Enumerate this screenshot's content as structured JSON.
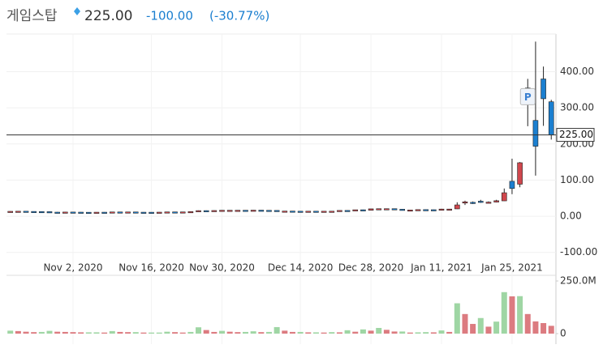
{
  "header": {
    "name": "게임스탑",
    "change": "-100.00",
    "change_pct": "(-30.77%)"
  },
  "chart_data": {
    "type": "candlestick",
    "categories": [
      null,
      null,
      null,
      null,
      null,
      null,
      null,
      null,
      "Nov 2, 2020",
      null,
      null,
      null,
      null,
      null,
      null,
      null,
      null,
      null,
      "Nov 16, 2020",
      null,
      null,
      null,
      null,
      null,
      null,
      null,
      null,
      "Nov 30, 2020",
      null,
      null,
      null,
      null,
      null,
      null,
      null,
      null,
      null,
      "Dec 14, 2020",
      null,
      null,
      null,
      null,
      null,
      null,
      null,
      null,
      "Dec 28, 2020",
      null,
      null,
      null,
      null,
      null,
      null,
      null,
      null,
      "Jan 11, 2021",
      null,
      null,
      null,
      null,
      null,
      null,
      null,
      null,
      "Jan 25, 2021",
      null,
      null,
      null,
      null,
      null
    ],
    "open": [
      13.2,
      13.6,
      13.9,
      13.3,
      13.0,
      12.7,
      11.3,
      11.2,
      11.6,
      11.3,
      11.0,
      10.9,
      11.2,
      11.0,
      11.9,
      11.4,
      11.9,
      11.2,
      11.1,
      11.0,
      11.3,
      12.0,
      11.9,
      12.0,
      12.9,
      15.6,
      15.3,
      15.9,
      16.6,
      16.6,
      16.6,
      16.1,
      16.9,
      16.4,
      16.1,
      13.7,
      14.3,
      13.9,
      13.8,
      14.0,
      13.6,
      13.9,
      14.0,
      16.1,
      15.7,
      17.9,
      16.6,
      20.5,
      20.9,
      20.9,
      19.4,
      17.3,
      17.4,
      18.4,
      18.1,
      19.5,
      19.9,
      20.4,
      38.5,
      38.5,
      41.6,
      37.4,
      39.2,
      42.6,
      96.7,
      88.6,
      354.8,
      265.0,
      379.7,
      316.6
    ],
    "high": [
      14.0,
      14.3,
      14.2,
      13.6,
      13.3,
      12.9,
      11.8,
      11.9,
      11.9,
      11.6,
      11.3,
      11.4,
      11.5,
      12.2,
      12.1,
      12.2,
      12.0,
      11.5,
      11.4,
      11.6,
      12.3,
      12.3,
      12.3,
      13.2,
      16.1,
      16.0,
      16.3,
      17.0,
      16.9,
      17.0,
      16.9,
      17.2,
      17.2,
      16.8,
      16.4,
      14.5,
      14.6,
      14.3,
      14.2,
      14.3,
      14.1,
      14.3,
      14.4,
      16.5,
      16.3,
      18.3,
      18.0,
      21.0,
      21.5,
      21.3,
      19.6,
      18.1,
      18.9,
      18.9,
      18.4,
      20.5,
      20.4,
      38.7,
      43.1,
      40.8,
      45.5,
      41.1,
      45.5,
      76.8,
      159.2,
      150.0,
      380.0,
      483.0,
      414.0,
      322.0
    ],
    "low": [
      13.0,
      13.3,
      13.1,
      12.8,
      12.5,
      11.1,
      11.0,
      11.0,
      11.1,
      10.8,
      10.7,
      10.7,
      10.8,
      10.9,
      11.2,
      11.3,
      11.1,
      10.9,
      10.8,
      10.8,
      11.1,
      11.7,
      11.7,
      11.8,
      12.8,
      14.9,
      15.0,
      15.6,
      16.2,
      16.1,
      15.9,
      16.0,
      16.2,
      15.9,
      13.5,
      13.5,
      13.8,
      13.6,
      13.5,
      13.7,
      13.4,
      13.5,
      13.7,
      13.9,
      15.4,
      15.6,
      16.4,
      18.5,
      20.2,
      20.2,
      18.5,
      17.1,
      17.2,
      17.9,
      17.6,
      19.0,
      19.4,
      20.0,
      31.2,
      34.0,
      37.1,
      36.7,
      38.2,
      42.3,
      61.1,
      80.2,
      249.0,
      112.3,
      250.0,
      212.0
    ],
    "close": [
      13.6,
      13.9,
      13.3,
      13.0,
      12.7,
      11.3,
      11.2,
      11.6,
      11.3,
      11.0,
      10.9,
      11.2,
      11.0,
      11.9,
      11.4,
      11.9,
      11.2,
      11.1,
      11.0,
      11.3,
      12.0,
      11.9,
      12.0,
      12.9,
      15.6,
      15.3,
      15.9,
      16.6,
      16.6,
      16.6,
      16.1,
      16.9,
      16.4,
      16.1,
      13.7,
      14.3,
      13.9,
      13.8,
      14.0,
      13.6,
      13.9,
      14.0,
      16.1,
      15.7,
      17.9,
      16.6,
      20.5,
      20.9,
      20.9,
      18.8,
      17.3,
      17.4,
      18.4,
      18.1,
      17.7,
      19.9,
      19.9,
      31.4,
      39.9,
      35.5,
      39.4,
      39.1,
      43.0,
      65.0,
      76.8,
      148.0,
      347.5,
      193.6,
      325.0,
      225.0
    ],
    "volume": [
      14,
      12,
      9,
      7,
      8,
      13,
      9,
      8,
      7,
      6,
      6,
      6,
      5,
      12,
      8,
      7,
      7,
      5,
      5,
      5,
      9,
      7,
      5,
      8,
      30,
      17,
      8,
      13,
      9,
      7,
      8,
      11,
      7,
      8,
      31,
      14,
      8,
      8,
      6,
      6,
      5,
      7,
      6,
      16,
      9,
      20,
      14,
      27,
      18,
      10,
      10,
      5,
      6,
      7,
      6,
      15,
      8,
      144,
      93,
      46,
      74,
      33,
      57,
      197,
      177,
      178,
      93,
      58,
      50,
      37
    ],
    "up_color": "#d0474d",
    "down_color": "#1b7fd0",
    "volume_up_color": "#9fd6a4",
    "volume_down_color": "#dc7b80",
    "ylim": [
      -123,
      504
    ],
    "yticks": [
      {
        "value": -100,
        "label": "-100.00"
      },
      {
        "value": 0,
        "label": "0.00"
      },
      {
        "value": 100,
        "label": "100.00"
      },
      {
        "value": 200,
        "label": "200.00"
      },
      {
        "value": 300,
        "label": "300.00"
      },
      {
        "value": 400,
        "label": "400.00"
      }
    ],
    "volume_lim": [
      0,
      250
    ],
    "volume_ticks": [
      0,
      {
        "value": 250,
        "label": "250.0M"
      }
    ],
    "last_price": {
      "value": 225,
      "label": "225.00"
    },
    "annotation": "P",
    "grid": true
  }
}
